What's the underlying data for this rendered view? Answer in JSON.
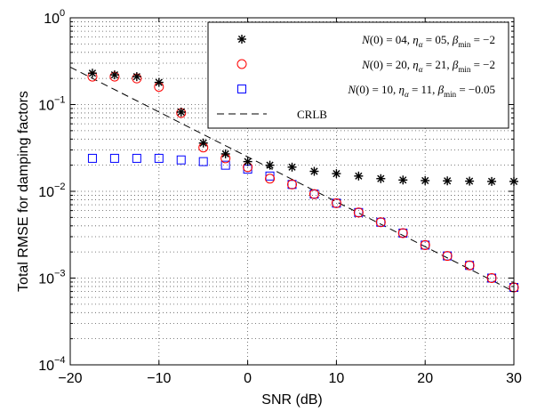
{
  "chart_data": {
    "type": "scatter",
    "xlabel": "SNR (dB)",
    "ylabel": "Total RMSE for damping factors",
    "xlim": [
      -20,
      30
    ],
    "ylim": [
      0.0001,
      1
    ],
    "yscale": "log",
    "grid": true,
    "legend_position": "top-right",
    "xticks": [
      -20,
      -10,
      0,
      10,
      20,
      30
    ],
    "xtick_labels": [
      "−20",
      "−10",
      "0",
      "10",
      "20",
      "30"
    ],
    "yticks": [
      {
        "value": 0.0001,
        "base": "10",
        "exp": "−4"
      },
      {
        "value": 0.001,
        "base": "10",
        "exp": "−3"
      },
      {
        "value": 0.01,
        "base": "10",
        "exp": "−2"
      },
      {
        "value": 0.1,
        "base": "10",
        "exp": "−1"
      },
      {
        "value": 1,
        "base": "10",
        "exp": "0"
      }
    ],
    "series": [
      {
        "marker": "asterisk",
        "color": "#000000",
        "legend": {
          "n0": "04",
          "eta": "05",
          "beta": "−2"
        },
        "x": [
          -17.5,
          -15,
          -12.5,
          -10,
          -7.5,
          -5,
          -2.5,
          0,
          2.5,
          5,
          7.5,
          10,
          12.5,
          15,
          17.5,
          20,
          22.5,
          25,
          27.5,
          30
        ],
        "y": [
          0.23,
          0.22,
          0.21,
          0.18,
          0.082,
          0.036,
          0.027,
          0.022,
          0.02,
          0.019,
          0.017,
          0.016,
          0.015,
          0.014,
          0.0135,
          0.0133,
          0.0132,
          0.0131,
          0.013,
          0.013
        ]
      },
      {
        "marker": "circle",
        "color": "#ff0000",
        "legend": {
          "n0": "20",
          "eta": "21",
          "beta": "−2"
        },
        "x": [
          -17.5,
          -15,
          -12.5,
          -10,
          -7.5,
          -5,
          -2.5,
          0,
          2.5,
          5,
          7.5,
          10,
          12.5,
          15,
          17.5,
          20,
          22.5,
          25,
          27.5,
          30
        ],
        "y": [
          0.21,
          0.21,
          0.2,
          0.16,
          0.08,
          0.032,
          0.024,
          0.019,
          0.014,
          0.012,
          0.0093,
          0.0073,
          0.0057,
          0.0044,
          0.0033,
          0.0024,
          0.0018,
          0.0014,
          0.001,
          0.00078
        ]
      },
      {
        "marker": "square",
        "color": "#0000ff",
        "legend": {
          "n0": "10",
          "eta": "11",
          "beta": "−0.05"
        },
        "x": [
          -17.5,
          -15,
          -12.5,
          -10,
          -7.5,
          -5,
          -2.5,
          0,
          2.5,
          5,
          7.5,
          10,
          12.5,
          15,
          17.5,
          20,
          22.5,
          25,
          27.5,
          30
        ],
        "y": [
          0.024,
          0.024,
          0.024,
          0.024,
          0.023,
          0.022,
          0.02,
          0.018,
          0.015,
          0.012,
          0.0093,
          0.0073,
          0.0057,
          0.0044,
          0.0033,
          0.0024,
          0.0018,
          0.0014,
          0.001,
          0.00078
        ]
      },
      {
        "marker": "dashed-line",
        "color": "#000000",
        "name": "CRLB",
        "x": [
          -20,
          30
        ],
        "y": [
          0.27,
          0.0007
        ]
      }
    ]
  }
}
